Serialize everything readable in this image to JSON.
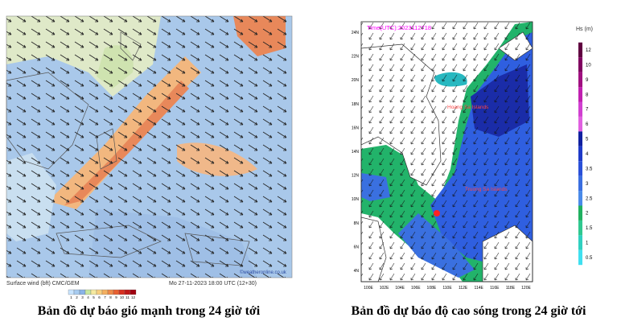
{
  "wind_map": {
    "caption": "Bản đồ dự báo gió mạnh trong 24 giờ tới",
    "legend_title": "Surface wind (bft)  CMC/GEM",
    "timestamp": "Mo 27-11-2023 18:00 UTC (12+30)",
    "credit": "©weatheronline.co.uk",
    "legend_values": [
      1,
      2,
      3,
      4,
      5,
      6,
      7,
      8,
      9,
      10,
      11,
      12
    ]
  },
  "wave_map": {
    "caption": "Bản đồ dự báo độ cao sóng trong 24 giờ tới",
    "time_label": "Time(UTC):2023112718",
    "islands": [
      "Hoang Sa Islands",
      "Truong Sa Islands"
    ],
    "legend_title": "Hs (m)",
    "legend_values": [
      12,
      10,
      9,
      8,
      7,
      6,
      5,
      4,
      3.5,
      3,
      2.5,
      2,
      1.5,
      1,
      0.5
    ],
    "lat_labels": [
      "24N",
      "22N",
      "20N",
      "18N",
      "16N",
      "14N",
      "12N",
      "10N",
      "8N",
      "6N",
      "4N"
    ],
    "lon_labels": [
      "100E",
      "102E",
      "104E",
      "106E",
      "108E",
      "110E",
      "112E",
      "114E",
      "116E",
      "118E",
      "120E"
    ]
  }
}
